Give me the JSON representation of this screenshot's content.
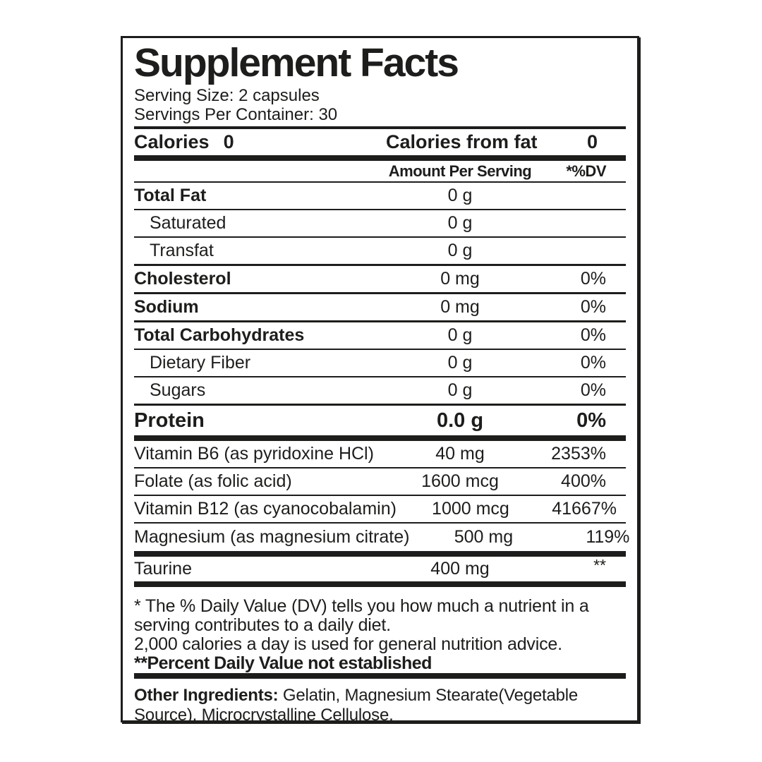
{
  "label": {
    "title": "Supplement Facts",
    "serving_size": "Serving Size: 2 capsules",
    "servings_per_container": "Servings Per Container: 30",
    "calories": {
      "label": "Calories",
      "value": "0",
      "fat_label": "Calories from fat",
      "fat_value": "0"
    },
    "columns": {
      "amount": "Amount Per Serving",
      "dv": "*%DV"
    },
    "nutrients": [
      {
        "name": "Total Fat",
        "amount": "0 g",
        "dv": ""
      },
      {
        "name": "Saturated",
        "amount": "0 g",
        "dv": ""
      },
      {
        "name": "Transfat",
        "amount": "0 g",
        "dv": ""
      },
      {
        "name": "Cholesterol",
        "amount": "0 mg",
        "dv": "0%"
      },
      {
        "name": "Sodium",
        "amount": "0 mg",
        "dv": "0%"
      },
      {
        "name": "Total Carbohydrates",
        "amount": "0 g",
        "dv": "0%"
      },
      {
        "name": "Dietary Fiber",
        "amount": "0 g",
        "dv": "0%"
      },
      {
        "name": "Sugars",
        "amount": "0 g",
        "dv": "0%"
      }
    ],
    "protein": {
      "name": "Protein",
      "amount": "0.0 g",
      "dv": "0%"
    },
    "supplements": [
      {
        "name": "Vitamin B6 (as pyridoxine HCl)",
        "amount": "40 mg",
        "dv": "2353%"
      },
      {
        "name": "Folate (as folic acid)",
        "amount": "1600 mcg",
        "dv": "400%"
      },
      {
        "name": "Vitamin B12 (as cyanocobalamin)",
        "amount": "1000 mcg",
        "dv": "41667%"
      },
      {
        "name": "Magnesium (as magnesium citrate)",
        "amount": "500 mg",
        "dv": "119%"
      }
    ],
    "taurine": {
      "name": "Taurine",
      "amount": "400 mg",
      "dv": "**"
    },
    "footnotes": [
      "* The % Daily Value (DV) tells you how much a nutrient in a",
      "serving contributes to a daily diet.",
      "2,000 calories a day is used for general nutrition advice."
    ],
    "footnote_bold": "**Percent Daily Value not established",
    "other_ingredients_label": "Other Ingredients:",
    "other_ingredients_text": " Gelatin, Magnesium Stearate(Vegetable Source), Microcrystalline Cellulose."
  },
  "colors": {
    "ink": "#1d1d1b",
    "background": "#ffffff"
  }
}
